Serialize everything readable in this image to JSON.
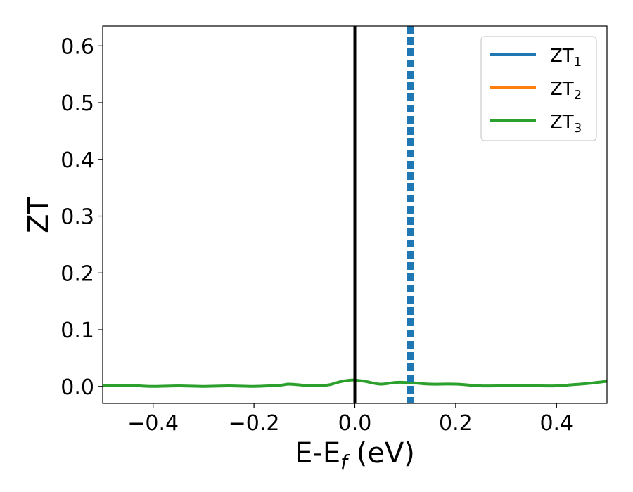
{
  "chart_data": {
    "type": "line",
    "xlabel": {
      "base": "E-E",
      "sub": "f",
      "tail": " (eV)"
    },
    "ylabel": "ZT",
    "xlim": [
      -0.5,
      0.5
    ],
    "ylim": [
      -0.03,
      0.635
    ],
    "xticks": [
      -0.4,
      -0.2,
      0.0,
      0.2,
      0.4
    ],
    "xtick_labels": [
      "−0.4",
      "−0.2",
      "0.0",
      "0.2",
      "0.4"
    ],
    "yticks": [
      0.0,
      0.1,
      0.2,
      0.3,
      0.4,
      0.5,
      0.6
    ],
    "ytick_labels": [
      "0.0",
      "0.1",
      "0.2",
      "0.3",
      "0.4",
      "0.5",
      "0.6"
    ],
    "grid": false,
    "legend_position": "top-right",
    "series": [
      {
        "name": "ZT",
        "sub": "1",
        "color": "#1f77b4",
        "x": [],
        "y": []
      },
      {
        "name": "ZT",
        "sub": "2",
        "color": "#ff7f0e",
        "x": [],
        "y": []
      },
      {
        "name": "ZT",
        "sub": "3",
        "color": "#2ca02c",
        "x": [
          -0.5,
          -0.45,
          -0.4,
          -0.35,
          -0.3,
          -0.25,
          -0.2,
          -0.15,
          -0.13,
          -0.1,
          -0.07,
          -0.05,
          -0.03,
          -0.01,
          0.0,
          0.02,
          0.05,
          0.08,
          0.1,
          0.12,
          0.15,
          0.2,
          0.25,
          0.3,
          0.35,
          0.4,
          0.43,
          0.46,
          0.5
        ],
        "y": [
          0.002,
          0.002,
          0.0,
          0.001,
          0.0,
          0.001,
          0.0,
          0.002,
          0.004,
          0.002,
          0.001,
          0.003,
          0.008,
          0.011,
          0.011,
          0.009,
          0.004,
          0.007,
          0.007,
          0.006,
          0.004,
          0.004,
          0.001,
          0.001,
          0.001,
          0.001,
          0.003,
          0.005,
          0.009
        ]
      }
    ],
    "vlines": [
      {
        "x": 0.0,
        "color": "#000000",
        "style": "solid"
      },
      {
        "x": 0.11,
        "color": "#1f77b4",
        "style": "dashed"
      }
    ]
  }
}
